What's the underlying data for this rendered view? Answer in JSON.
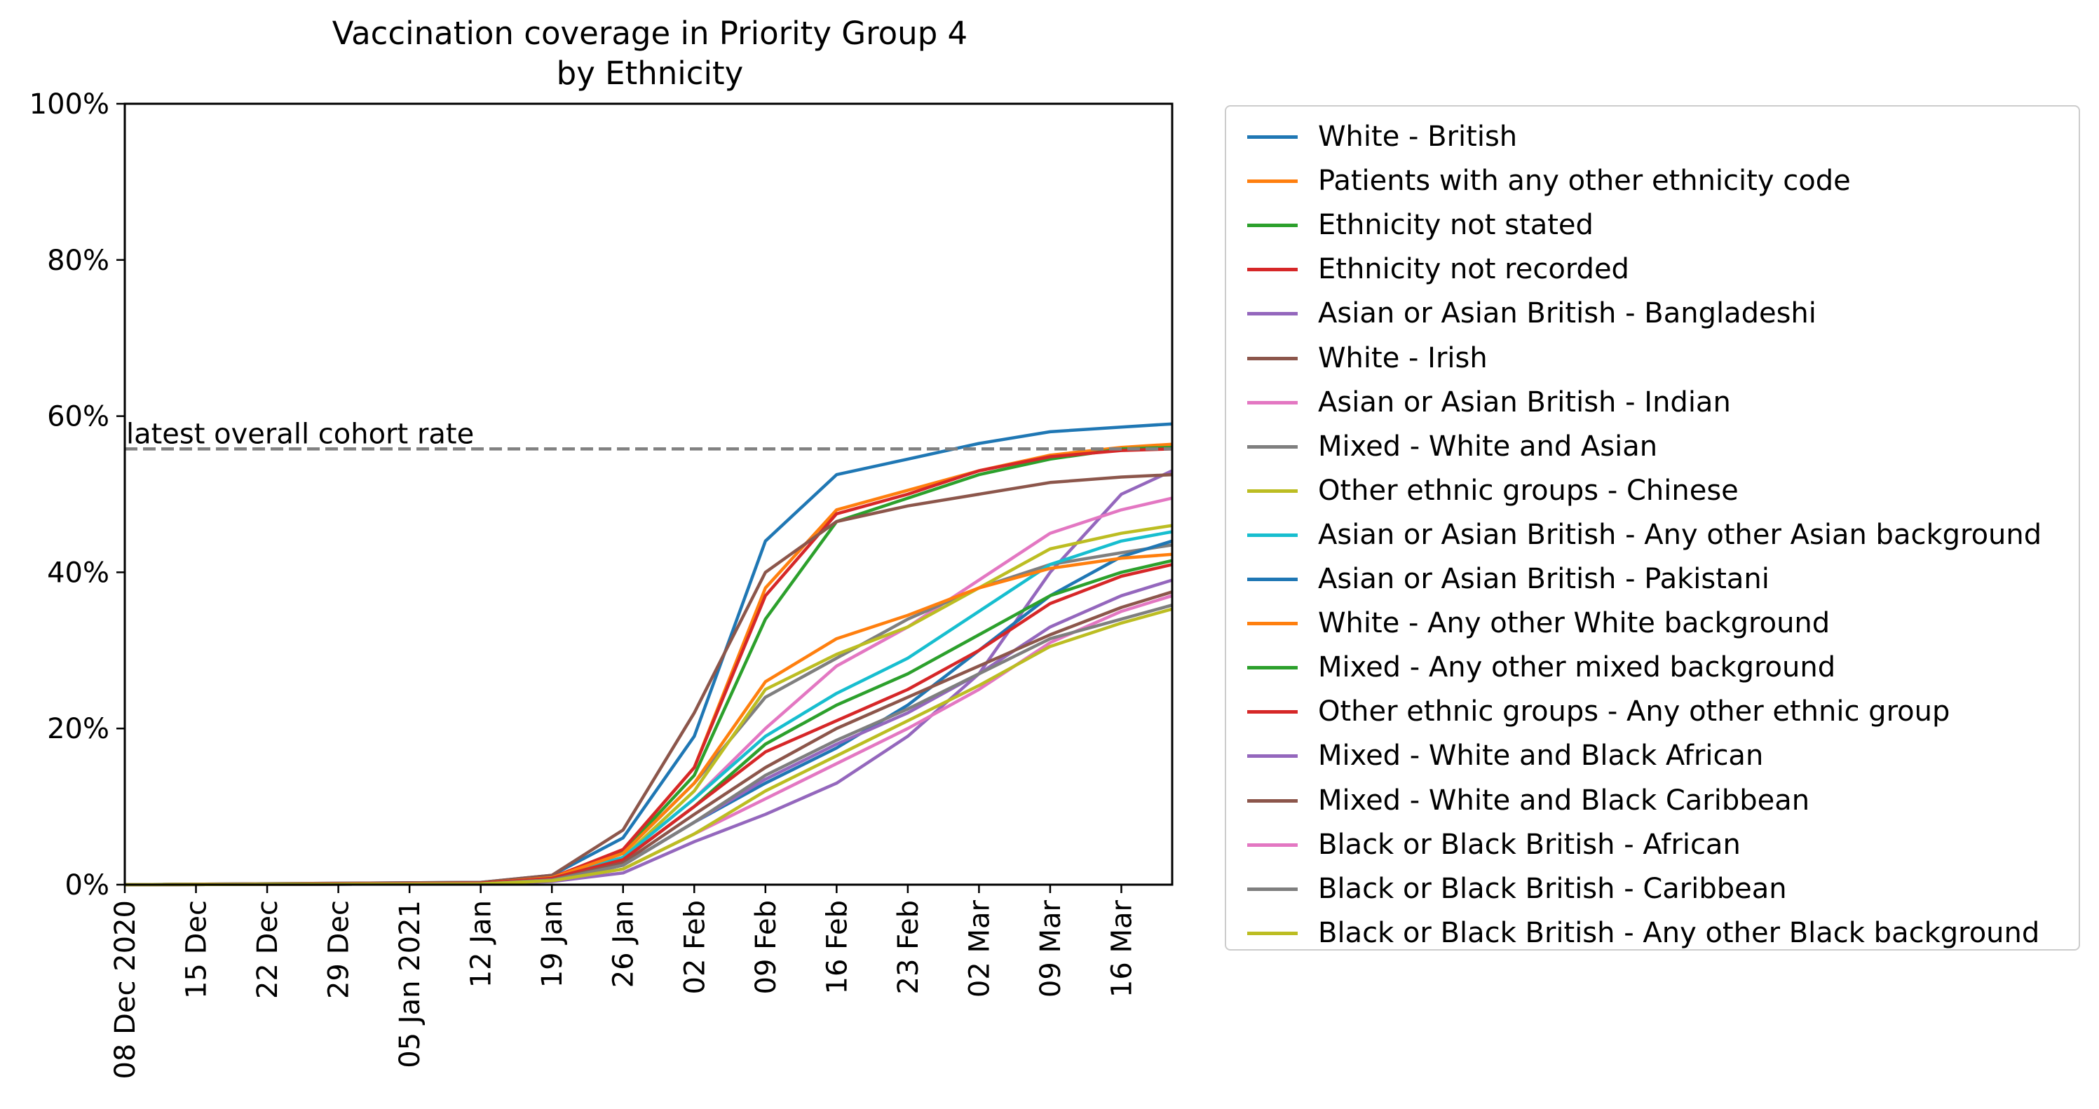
{
  "chart_data": {
    "type": "line",
    "title": "Vaccination coverage in Priority Group 4\nby Ethnicity",
    "title_lines": [
      "Vaccination coverage in Priority Group 4",
      "by Ethnicity"
    ],
    "xlabel": "",
    "ylabel": "",
    "xlim": [
      "2020-12-08",
      "2021-03-21"
    ],
    "ylim": [
      0,
      100
    ],
    "y_ticks": [
      0,
      20,
      40,
      60,
      80,
      100
    ],
    "y_tick_labels": [
      "0%",
      "20%",
      "40%",
      "60%",
      "80%",
      "100%"
    ],
    "x_ticks": [
      "2020-12-08",
      "2020-12-15",
      "2020-12-22",
      "2020-12-29",
      "2021-01-05",
      "2021-01-12",
      "2021-01-19",
      "2021-01-26",
      "2021-02-02",
      "2021-02-09",
      "2021-02-16",
      "2021-02-23",
      "2021-03-02",
      "2021-03-09",
      "2021-03-16"
    ],
    "x_tick_labels": [
      "08 Dec 2020",
      "15 Dec",
      "22 Dec",
      "29 Dec",
      "05 Jan 2021",
      "12 Jan",
      "19 Jan",
      "26 Jan",
      "02 Feb",
      "09 Feb",
      "16 Feb",
      "23 Feb",
      "02 Mar",
      "09 Mar",
      "16 Mar"
    ],
    "grid": false,
    "legend_position": "outside right",
    "reference_line": {
      "y": 55.8,
      "label": "latest overall cohort rate",
      "color": "#808080",
      "style": "dashed"
    },
    "x": [
      "2020-12-08",
      "2021-01-12",
      "2021-01-19",
      "2021-01-26",
      "2021-02-02",
      "2021-02-09",
      "2021-02-16",
      "2021-02-23",
      "2021-03-02",
      "2021-03-09",
      "2021-03-16",
      "2021-03-21"
    ],
    "series": [
      {
        "name": "White - British",
        "color": "#1f77b4",
        "values": [
          0,
          0.3,
          1.2,
          6,
          19,
          44,
          52.5,
          54.5,
          56.5,
          58,
          58.6,
          59
        ]
      },
      {
        "name": "Patients with any other ethnicity code",
        "color": "#ff7f0e",
        "values": [
          0,
          0.2,
          0.9,
          4.5,
          15,
          38,
          48,
          50.5,
          53,
          55,
          56,
          56.4
        ]
      },
      {
        "name": "Ethnicity not stated",
        "color": "#2ca02c",
        "values": [
          0,
          0.2,
          0.9,
          4.2,
          14,
          34,
          46.5,
          49.5,
          52.5,
          54.5,
          55.8,
          56
        ]
      },
      {
        "name": "Ethnicity not recorded",
        "color": "#d62728",
        "values": [
          0,
          0.2,
          0.9,
          4.5,
          15,
          37,
          47.5,
          50,
          53,
          54.8,
          55.6,
          55.8
        ]
      },
      {
        "name": "Asian or Asian British - Bangladeshi",
        "color": "#9467bd",
        "values": [
          0,
          0.1,
          0.4,
          1.5,
          5.5,
          9,
          13,
          19,
          27,
          40,
          50,
          53
        ]
      },
      {
        "name": "White - Irish",
        "color": "#8c564b",
        "values": [
          0,
          0.3,
          1.2,
          7,
          22,
          40,
          46.5,
          48.5,
          50,
          51.5,
          52.2,
          52.5
        ]
      },
      {
        "name": "Asian or Asian British - Indian",
        "color": "#e377c2",
        "values": [
          0,
          0.2,
          0.8,
          3.5,
          11,
          20,
          28,
          33,
          39,
          45,
          48,
          49.5
        ]
      },
      {
        "name": "Mixed - White and Asian",
        "color": "#7f7f7f",
        "values": [
          0,
          0.2,
          0.8,
          4,
          13,
          24,
          29,
          34,
          38,
          41,
          42.5,
          43.5
        ]
      },
      {
        "name": "Other ethnic groups - Chinese",
        "color": "#bcbd22",
        "values": [
          0,
          0.2,
          0.8,
          3.5,
          12,
          25,
          29.5,
          33,
          38,
          43,
          45,
          46
        ]
      },
      {
        "name": "Asian or Asian British - Any other Asian background",
        "color": "#17becf",
        "values": [
          0,
          0.2,
          0.8,
          3.5,
          11,
          19,
          24.5,
          29,
          35,
          41,
          44,
          45.2
        ]
      },
      {
        "name": "Asian or Asian British - Pakistani",
        "color": "#1f77b4",
        "values": [
          0,
          0.1,
          0.5,
          2.5,
          8,
          13,
          17.5,
          23,
          30,
          37,
          42,
          44
        ]
      },
      {
        "name": "White - Any other White background",
        "color": "#ff7f0e",
        "values": [
          0,
          0.2,
          0.9,
          4,
          13,
          26,
          31.5,
          34.5,
          38,
          40.5,
          41.8,
          42.3
        ]
      },
      {
        "name": "Mixed - Any other mixed background",
        "color": "#2ca02c",
        "values": [
          0,
          0.2,
          0.8,
          3.2,
          10,
          18,
          23,
          27,
          32,
          37,
          40,
          41.5
        ]
      },
      {
        "name": "Other ethnic groups - Any other ethnic group",
        "color": "#d62728",
        "values": [
          0,
          0.2,
          0.8,
          3.2,
          10,
          17,
          21,
          25,
          30,
          36,
          39.5,
          41
        ]
      },
      {
        "name": "Mixed - White and Black African",
        "color": "#9467bd",
        "values": [
          0,
          0.1,
          0.6,
          2.5,
          8,
          13.5,
          18,
          22,
          27,
          33,
          37,
          39
        ]
      },
      {
        "name": "Mixed - White and Black Caribbean",
        "color": "#8c564b",
        "values": [
          0,
          0.1,
          0.6,
          2.8,
          9,
          15,
          20,
          24,
          28,
          32,
          35.5,
          37.5
        ]
      },
      {
        "name": "Black or Black British - African",
        "color": "#e377c2",
        "values": [
          0,
          0.1,
          0.5,
          2,
          6.5,
          11,
          15.5,
          20,
          25,
          31,
          35,
          37
        ]
      },
      {
        "name": "Black or Black British - Caribbean",
        "color": "#7f7f7f",
        "values": [
          0,
          0.1,
          0.6,
          2.5,
          8,
          14,
          18.5,
          22.5,
          27,
          31.5,
          34,
          35.8
        ]
      },
      {
        "name": "Black or Black British - Any other Black background",
        "color": "#bcbd22",
        "values": [
          0,
          0.1,
          0.5,
          2,
          6.5,
          12,
          16.5,
          21,
          25.5,
          30.5,
          33.5,
          35.3
        ]
      }
    ]
  }
}
